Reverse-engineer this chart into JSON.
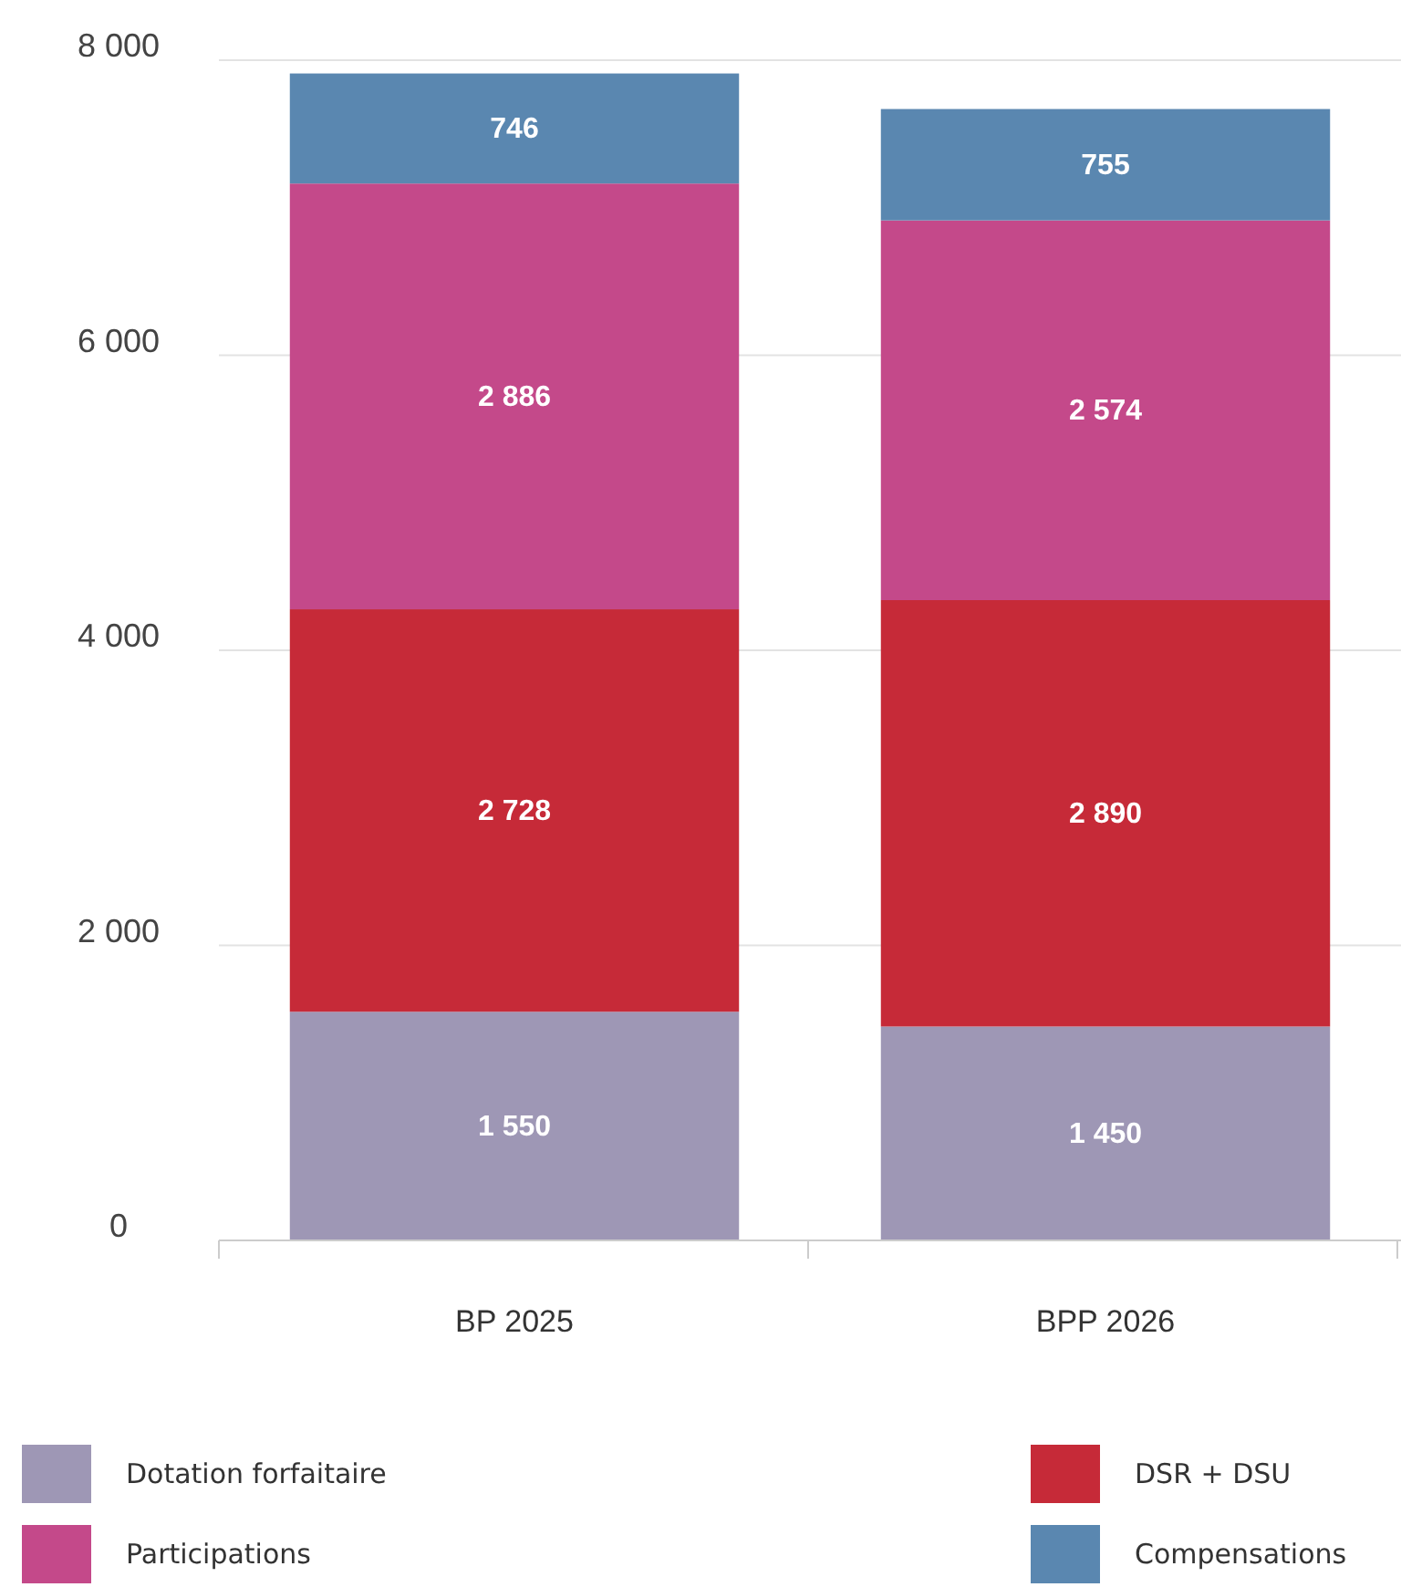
{
  "chart_data": {
    "type": "bar",
    "stacked": true,
    "categories": [
      "BP 2025",
      "BPP 2026"
    ],
    "ylim": [
      0,
      8000
    ],
    "yticks": [
      {
        "value": 0,
        "label": "0"
      },
      {
        "value": 2000,
        "label": "2 000"
      },
      {
        "value": 4000,
        "label": "4 000"
      },
      {
        "value": 6000,
        "label": "6 000"
      },
      {
        "value": 8000,
        "label": "8 000"
      }
    ],
    "grid": "y",
    "legend": "bottom",
    "series": [
      {
        "name": "Dotation forfaitaire",
        "color": "#9e97b5",
        "values": [
          1550,
          1450
        ],
        "value_labels": [
          "1 550",
          "1 450"
        ]
      },
      {
        "name": "DSR + DSU",
        "color": "#c62a38",
        "values": [
          2728,
          2890
        ],
        "value_labels": [
          "2 728",
          "2 890"
        ]
      },
      {
        "name": "Participations",
        "color": "#c4498a",
        "values": [
          2886,
          2574
        ],
        "value_labels": [
          "2 886",
          "2 574"
        ]
      },
      {
        "name": "Compensations",
        "color": "#5a87b0",
        "values": [
          746,
          755
        ],
        "value_labels": [
          "746",
          "755"
        ]
      }
    ]
  }
}
